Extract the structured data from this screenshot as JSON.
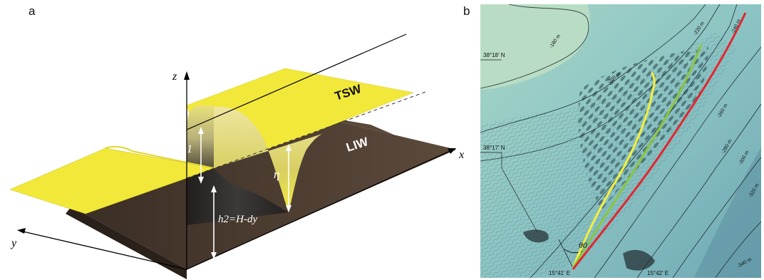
{
  "panel_a": {
    "letter": "a",
    "axes": {
      "z": "z",
      "x": "x",
      "y": "y"
    },
    "labels": {
      "upper_layer": "TSW",
      "lower_layer": "LIW",
      "h1": "h1",
      "eta": "η",
      "h2": "h2=H-dy"
    },
    "colors": {
      "upper_layer": "#f2e83a",
      "lower_layer": "#4a3a30"
    }
  },
  "panel_b": {
    "letter": "b",
    "lat_labels": [
      "38°18' N",
      "38°17' N"
    ],
    "lon_labels": [
      "15°41' E",
      "15°42' E"
    ],
    "contour_labels": [
      "-180 m",
      "-200 m",
      "-220 m",
      "-240 m",
      "-260 m",
      "-280 m",
      "-300 m",
      "-320 m",
      "-340 m"
    ],
    "angle_label": "θ0",
    "line_colors": {
      "yellow": "#f5f03c",
      "green": "#8cc63f",
      "red": "#e3262e"
    }
  }
}
